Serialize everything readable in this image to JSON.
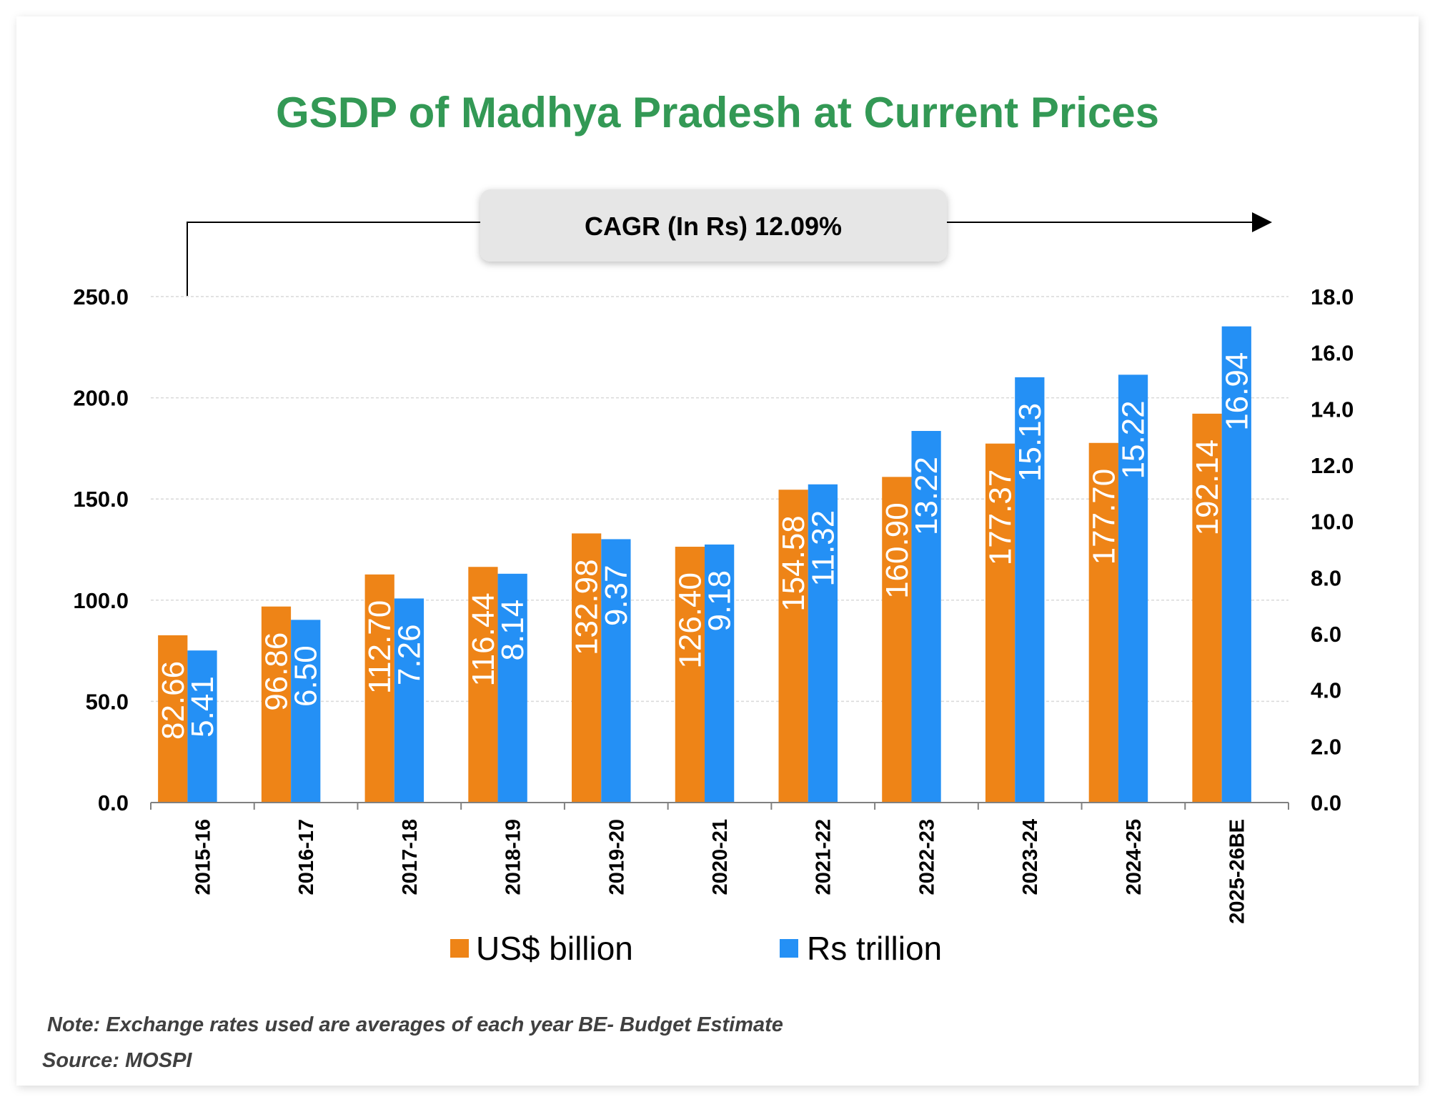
{
  "chart_data": {
    "type": "bar",
    "title": "GSDP of Madhya Pradesh at Current Prices",
    "annotation": "CAGR (In Rs) 12.09%",
    "categories": [
      "2015-16",
      "2016-17",
      "2017-18",
      "2018-19",
      "2019-20",
      "2020-21",
      "2021-22",
      "2022-23",
      "2023-24",
      "2024-25",
      "2025-26BE"
    ],
    "series": [
      {
        "name": "US$ billion",
        "axis": "left",
        "color": "#EE8417",
        "values": [
          82.66,
          96.86,
          112.7,
          116.44,
          132.98,
          126.4,
          154.58,
          160.9,
          177.37,
          177.7,
          192.14
        ],
        "labels": [
          "82.66",
          "96.86",
          "112.70",
          "116.44",
          "132.98",
          "126.40",
          "154.58",
          "160.90",
          "177.37",
          "177.70",
          "192.14"
        ]
      },
      {
        "name": "Rs trillion",
        "axis": "right",
        "color": "#2490F5",
        "values": [
          5.41,
          6.5,
          7.26,
          8.14,
          9.37,
          9.18,
          11.32,
          13.22,
          15.13,
          15.22,
          16.94
        ],
        "labels": [
          "5.41",
          "6.50",
          "7.26",
          "8.14",
          "9.37",
          "9.18",
          "11.32",
          "13.22",
          "15.13",
          "15.22",
          "16.94"
        ]
      }
    ],
    "y_left": {
      "range": [
        0,
        250
      ],
      "ticks": [
        "0.0",
        "50.0",
        "100.0",
        "150.0",
        "200.0",
        "250.0"
      ]
    },
    "y_right": {
      "range": [
        0,
        18
      ],
      "ticks": [
        "0.0",
        "2.0",
        "4.0",
        "6.0",
        "8.0",
        "10.0",
        "12.0",
        "14.0",
        "16.0",
        "18.0"
      ]
    },
    "grid": true,
    "legend": "bottom",
    "title_color": "#339955"
  },
  "footer": {
    "note": "Note: Exchange rates used are averages of each year BE- Budget Estimate",
    "source": "Source: MOSPI"
  }
}
